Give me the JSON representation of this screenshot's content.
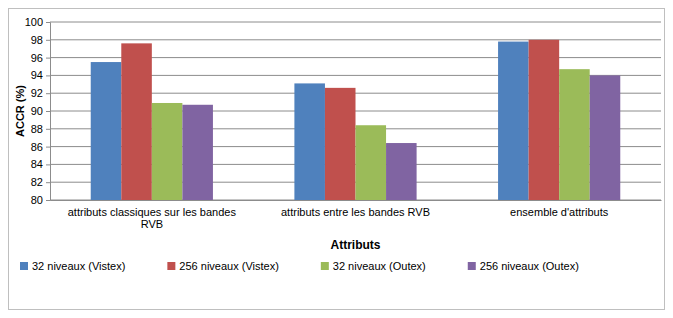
{
  "chart_data": {
    "type": "bar",
    "y_label": "ACCR (%)",
    "x_label": "Attributs",
    "categories": [
      "attributs classiques sur les bandes RVB",
      "attributs entre les bandes RVB",
      "ensemble d'attributs"
    ],
    "series": [
      {
        "name": "32 niveaux (Vistex)",
        "color": "#4f81bd",
        "values": [
          95.5,
          93.1,
          97.8
        ]
      },
      {
        "name": "256 niveaux (Vistex)",
        "color": "#c0504d",
        "values": [
          97.6,
          92.6,
          98.0
        ]
      },
      {
        "name": "32 niveaux (Outex)",
        "color": "#9bbb59",
        "values": [
          90.9,
          88.4,
          94.7
        ]
      },
      {
        "name": "256 niveaux (Outex)",
        "color": "#8064a2",
        "values": [
          90.7,
          86.4,
          94.0
        ]
      }
    ],
    "ylim": [
      80,
      100
    ],
    "yticks": [
      80,
      82,
      84,
      86,
      88,
      90,
      92,
      94,
      96,
      98,
      100
    ],
    "grid": true,
    "legend": "bottom"
  }
}
